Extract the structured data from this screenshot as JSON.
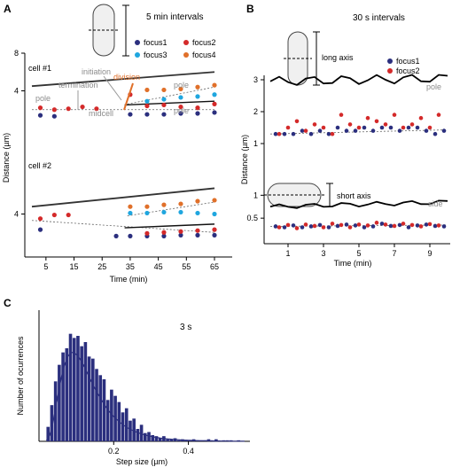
{
  "panel_letters": {
    "a": "A",
    "b": "B",
    "c": "C"
  },
  "colors": {
    "focus1": "#2b2f7e",
    "focus2": "#d42a2a",
    "focus3": "#1fa6df",
    "focus4": "#e0702a",
    "division": "#e0702a",
    "bars": "#2b2f7e",
    "annotation_gray": "#8c8c8c"
  },
  "chart_data": [
    {
      "id": "A",
      "type": "scatter",
      "title": "5 min intervals",
      "ylabel": "Distance (µm)",
      "xlabel": "Time (min)",
      "xticks": [
        5,
        15,
        25,
        35,
        45,
        55,
        65
      ],
      "legend": [
        "focus1",
        "focus2",
        "focus3",
        "focus4"
      ],
      "legend_placement": "top-right",
      "annotations": {
        "initiation": "initiation",
        "termination": "termination",
        "division": "division",
        "pole": "pole",
        "midcell": "midcell"
      },
      "cells": [
        {
          "label": "cell #1",
          "ylim": [
            0,
            8
          ],
          "yticks": [
            4,
            8
          ],
          "series": [
            {
              "name": "focus1",
              "x": [
                3,
                8,
                35,
                41,
                47,
                53,
                59,
                65
              ],
              "y": [
                1.4,
                1.3,
                1.5,
                1.5,
                1.5,
                1.6,
                1.6,
                1.7
              ]
            },
            {
              "name": "focus2",
              "x": [
                3,
                8,
                13,
                18,
                23,
                35,
                41,
                47,
                53,
                59,
                65
              ],
              "y": [
                2.2,
                2.0,
                2.1,
                2.3,
                2.1,
                3.6,
                2.4,
                2.5,
                2.3,
                2.2,
                2.6
              ]
            },
            {
              "name": "focus3",
              "x": [
                41,
                47,
                53,
                59,
                65
              ],
              "y": [
                2.9,
                3.1,
                3.3,
                3.4,
                3.6
              ]
            },
            {
              "name": "focus4",
              "x": [
                41,
                47,
                53,
                59,
                65
              ],
              "y": [
                4.1,
                4.1,
                4.2,
                4.4,
                4.6
              ]
            }
          ],
          "pole_line": {
            "x": [
              0,
              65
            ],
            "y": [
              4.5,
              6.0
            ]
          }
        },
        {
          "label": "cell #2",
          "ylim": [
            0,
            8
          ],
          "yticks": [
            4
          ],
          "series": [
            {
              "name": "focus1",
              "x": [
                3,
                30,
                35,
                41,
                47,
                53,
                59,
                65
              ],
              "y": [
                2.3,
                1.6,
                1.6,
                1.6,
                1.6,
                1.7,
                1.7,
                1.7
              ]
            },
            {
              "name": "focus2",
              "x": [
                3,
                8,
                13,
                41,
                47,
                53,
                59,
                65
              ],
              "y": [
                3.5,
                3.9,
                3.9,
                1.9,
                2.0,
                2.1,
                2.2,
                2.3
              ]
            },
            {
              "name": "focus3",
              "x": [
                35,
                41,
                47,
                53,
                59,
                65
              ],
              "y": [
                4.1,
                4.1,
                4.2,
                4.2,
                4.1,
                4.0
              ]
            },
            {
              "name": "focus4",
              "x": [
                35,
                41,
                47,
                53,
                59,
                65
              ],
              "y": [
                4.8,
                4.8,
                5.0,
                5.1,
                5.4,
                5.5
              ]
            }
          ],
          "pole_line": {
            "x": [
              0,
              65
            ],
            "y": [
              4.8,
              6.8
            ]
          }
        }
      ]
    },
    {
      "id": "B",
      "type": "scatter",
      "title": "30 s intervals",
      "ylabel": "Distance (µm)",
      "xlabel": "Time (min)",
      "xticks": [
        1,
        3,
        5,
        7,
        9
      ],
      "legend": [
        "focus1",
        "focus2"
      ],
      "legend_placement": "top-right",
      "long_axis": {
        "label": "long axis",
        "line_label": "pole",
        "ylim": [
          0,
          3.5
        ],
        "yticks": [
          1,
          2,
          3
        ],
        "series": [
          {
            "name": "focus1",
            "x": [
              0.3,
              0.8,
              1.3,
              1.8,
              2.3,
              2.8,
              3.3,
              3.8,
              4.3,
              4.8,
              5.3,
              5.8,
              6.3,
              6.8,
              7.3,
              7.8,
              8.3,
              8.8,
              9.3,
              9.8
            ],
            "y": [
              1.3,
              1.3,
              1.3,
              1.4,
              1.3,
              1.4,
              1.3,
              1.5,
              1.4,
              1.4,
              1.5,
              1.4,
              1.5,
              1.5,
              1.4,
              1.5,
              1.5,
              1.4,
              1.3,
              1.4
            ]
          },
          {
            "name": "focus2",
            "x": [
              0.5,
              1.0,
              1.5,
              2.0,
              2.5,
              3.0,
              3.5,
              4.0,
              4.5,
              5.0,
              5.5,
              6.0,
              6.5,
              7.0,
              7.5,
              8.0,
              8.5,
              9.0,
              9.5
            ],
            "y": [
              1.3,
              1.5,
              1.7,
              1.4,
              1.6,
              1.5,
              1.3,
              1.9,
              1.6,
              1.5,
              1.8,
              1.7,
              1.6,
              1.9,
              1.5,
              1.6,
              1.8,
              1.5,
              1.9
            ]
          }
        ],
        "pole_line": {
          "x": [
            0,
            10
          ],
          "y": [
            2.95,
            3.05
          ]
        }
      },
      "short_axis": {
        "label": "short axis",
        "line_label": "side",
        "ylim": [
          0,
          1.2
        ],
        "yticks": [
          0.5,
          1
        ],
        "series": [
          {
            "name": "focus1",
            "x": [
              0.3,
              0.8,
              1.3,
              1.8,
              2.3,
              2.8,
              3.3,
              3.8,
              4.3,
              4.8,
              5.3,
              5.8,
              6.3,
              6.8,
              7.3,
              7.8,
              8.3,
              8.8,
              9.3,
              9.8
            ],
            "y": [
              0.32,
              0.3,
              0.34,
              0.3,
              0.32,
              0.35,
              0.3,
              0.33,
              0.36,
              0.34,
              0.3,
              0.32,
              0.38,
              0.33,
              0.35,
              0.3,
              0.34,
              0.36,
              0.33,
              0.32
            ]
          },
          {
            "name": "focus2",
            "x": [
              0.5,
              1.0,
              1.5,
              2.0,
              2.5,
              3.0,
              3.5,
              4.0,
              4.5,
              5.0,
              5.5,
              6.0,
              6.5,
              7.0,
              7.5,
              8.0,
              8.5,
              9.0,
              9.5
            ],
            "y": [
              0.3,
              0.35,
              0.28,
              0.36,
              0.33,
              0.3,
              0.38,
              0.35,
              0.3,
              0.36,
              0.34,
              0.4,
              0.36,
              0.33,
              0.38,
              0.35,
              0.32,
              0.37,
              0.34
            ]
          }
        ],
        "side_line": {
          "x": [
            0,
            10
          ],
          "y": [
            0.75,
            0.85
          ]
        }
      }
    },
    {
      "id": "C",
      "type": "bar",
      "title": "3 s",
      "xlabel": "Step size (µm)",
      "ylabel": "Number of ocurrences",
      "xticks": [
        0.2,
        0.4
      ],
      "xlim": [
        0.0,
        0.56
      ],
      "ylim": [
        0,
        120
      ],
      "bin_width": 0.01,
      "bin_start": 0.02,
      "values": [
        14,
        35,
        58,
        74,
        86,
        90,
        104,
        100,
        102,
        92,
        96,
        82,
        80,
        70,
        64,
        60,
        40,
        50,
        44,
        38,
        28,
        32,
        20,
        22,
        12,
        16,
        8,
        9,
        6,
        5,
        3,
        5,
        2,
        2,
        3,
        1,
        2,
        1,
        1,
        2,
        1,
        1,
        1,
        2,
        1,
        2,
        0,
        1,
        1,
        1,
        0,
        1
      ],
      "fit_curve": {
        "type": "lognormal",
        "peak_x": 0.09,
        "peak_y": 86
      }
    }
  ]
}
